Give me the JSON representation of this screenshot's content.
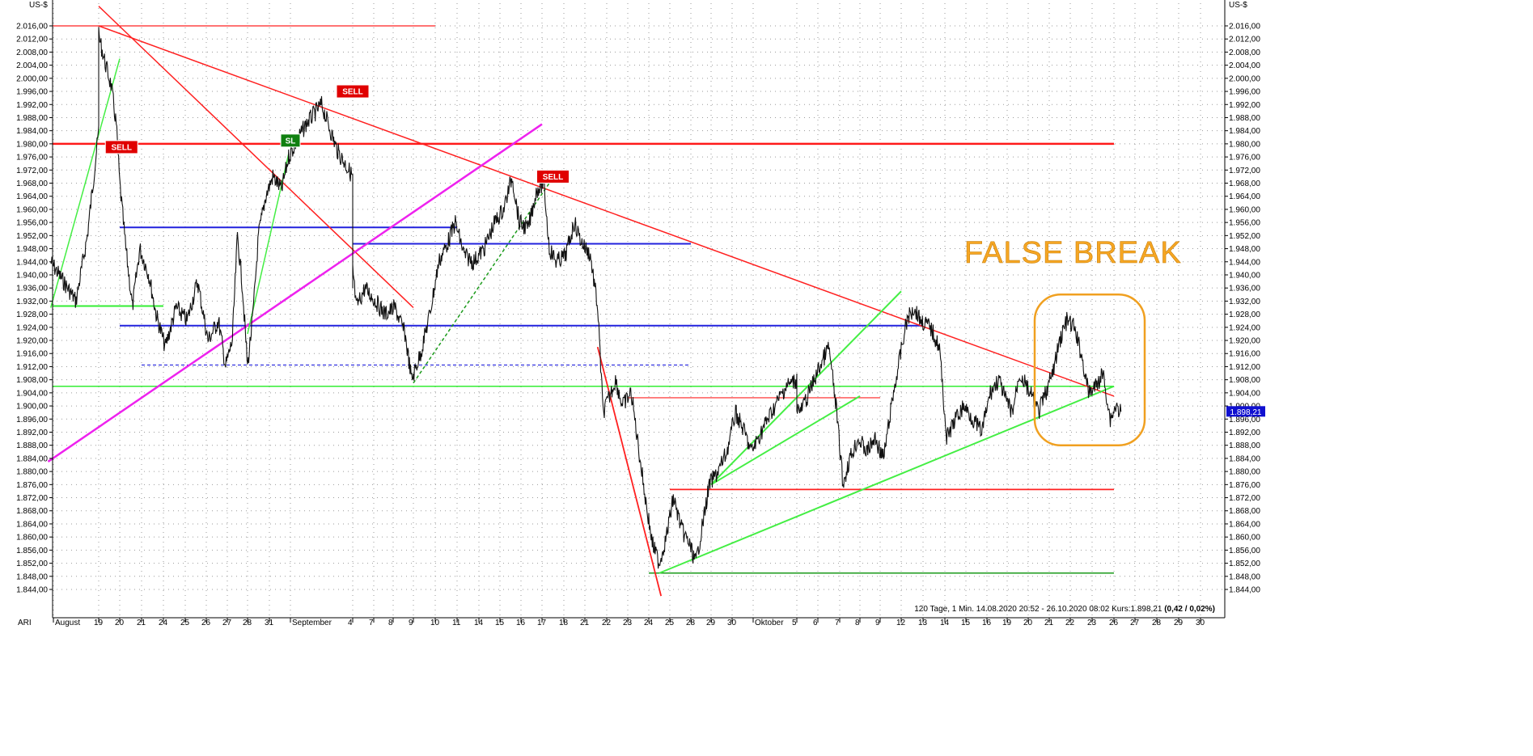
{
  "chart_data": {
    "type": "line",
    "unit_left": "US-$",
    "unit_right": "US-$",
    "symbol": "ARI",
    "info_line_prefix": "120 Tage, 1 Min. 14.08.2020 20:52 - 26.10.2020 08:02  Kurs:1.898,21 ",
    "info_line_change": "(0,42 / 0,02%)",
    "last_price_label": "1.898,21",
    "last_price": 1898.21,
    "ylim": [
      1840,
      2020
    ],
    "y_ticks": [
      1844,
      1848,
      1852,
      1856,
      1860,
      1864,
      1868,
      1872,
      1876,
      1880,
      1884,
      1888,
      1892,
      1896,
      1900,
      1904,
      1908,
      1912,
      1916,
      1920,
      1924,
      1928,
      1932,
      1936,
      1940,
      1944,
      1948,
      1952,
      1956,
      1960,
      1964,
      1968,
      1972,
      1976,
      1980,
      1984,
      1988,
      1992,
      1996,
      2000,
      2004,
      2008,
      2012,
      2016
    ],
    "y_tick_labels": [
      "1.844,00",
      "1.848,00",
      "1.852,00",
      "1.856,00",
      "1.860,00",
      "1.864,00",
      "1.868,00",
      "1.872,00",
      "1.876,00",
      "1.880,00",
      "1.884,00",
      "1.888,00",
      "1.892,00",
      "1.896,00",
      "1.900,00",
      "1.904,00",
      "1.908,00",
      "1.912,00",
      "1.916,00",
      "1.920,00",
      "1.924,00",
      "1.928,00",
      "1.932,00",
      "1.936,00",
      "1.940,00",
      "1.944,00",
      "1.948,00",
      "1.952,00",
      "1.956,00",
      "1.960,00",
      "1.964,00",
      "1.968,00",
      "1.972,00",
      "1.976,00",
      "1.980,00",
      "1.984,00",
      "1.988,00",
      "1.992,00",
      "1.996,00",
      "2.000,00",
      "2.004,00",
      "2.008,00",
      "2.012,00",
      "2.016,00"
    ],
    "x_ticks": [
      {
        "label": "August",
        "date": "2020-08-17",
        "px": 66
      },
      {
        "label": "19",
        "date": "2020-08-19",
        "px": 122
      },
      {
        "label": "20",
        "date": "2020-08-20",
        "px": 148
      },
      {
        "label": "21",
        "date": "2020-08-21",
        "px": 175
      },
      {
        "label": "24",
        "date": "2020-08-24",
        "px": 202
      },
      {
        "label": "25",
        "date": "2020-08-25",
        "px": 229
      },
      {
        "label": "26",
        "date": "2020-08-26",
        "px": 255
      },
      {
        "label": "27",
        "date": "2020-08-27",
        "px": 281
      },
      {
        "label": "28",
        "date": "2020-08-28",
        "px": 306
      },
      {
        "label": "31",
        "date": "2020-08-31",
        "px": 333
      },
      {
        "label": "September",
        "date": "2020-09-01",
        "px": 359
      },
      {
        "label": "4",
        "date": "2020-09-04",
        "px": 436
      },
      {
        "label": "7",
        "date": "2020-09-07",
        "px": 462
      },
      {
        "label": "8",
        "date": "2020-09-08",
        "px": 486
      },
      {
        "label": "9",
        "date": "2020-09-09",
        "px": 511
      },
      {
        "label": "10",
        "date": "2020-09-10",
        "px": 538
      },
      {
        "label": "11",
        "date": "2020-09-11",
        "px": 565
      },
      {
        "label": "14",
        "date": "2020-09-14",
        "px": 592
      },
      {
        "label": "15",
        "date": "2020-09-15",
        "px": 618
      },
      {
        "label": "16",
        "date": "2020-09-16",
        "px": 644
      },
      {
        "label": "17",
        "date": "2020-09-17",
        "px": 670
      },
      {
        "label": "18",
        "date": "2020-09-18",
        "px": 697
      },
      {
        "label": "21",
        "date": "2020-09-21",
        "px": 723
      },
      {
        "label": "22",
        "date": "2020-09-22",
        "px": 750
      },
      {
        "label": "23",
        "date": "2020-09-23",
        "px": 776
      },
      {
        "label": "24",
        "date": "2020-09-24",
        "px": 802
      },
      {
        "label": "25",
        "date": "2020-09-25",
        "px": 828
      },
      {
        "label": "28",
        "date": "2020-09-28",
        "px": 854
      },
      {
        "label": "29",
        "date": "2020-09-29",
        "px": 879
      },
      {
        "label": "30",
        "date": "2020-09-30",
        "px": 905
      },
      {
        "label": "Oktober",
        "date": "2020-10-01",
        "px": 931
      },
      {
        "label": "5",
        "date": "2020-10-05",
        "px": 985
      },
      {
        "label": "6",
        "date": "2020-10-06",
        "px": 1011
      },
      {
        "label": "7",
        "date": "2020-10-07",
        "px": 1038
      },
      {
        "label": "8",
        "date": "2020-10-08",
        "px": 1063
      },
      {
        "label": "9",
        "date": "2020-10-09",
        "px": 1088
      },
      {
        "label": "12",
        "date": "2020-10-12",
        "px": 1114
      },
      {
        "label": "13",
        "date": "2020-10-13",
        "px": 1141
      },
      {
        "label": "14",
        "date": "2020-10-14",
        "px": 1168
      },
      {
        "label": "15",
        "date": "2020-10-15",
        "px": 1194
      },
      {
        "label": "16",
        "date": "2020-10-16",
        "px": 1220
      },
      {
        "label": "19",
        "date": "2020-10-19",
        "px": 1245
      },
      {
        "label": "20",
        "date": "2020-10-20",
        "px": 1271
      },
      {
        "label": "21",
        "date": "2020-10-21",
        "px": 1297
      },
      {
        "label": "22",
        "date": "2020-10-22",
        "px": 1323
      },
      {
        "label": "23",
        "date": "2020-10-23",
        "px": 1350
      },
      {
        "label": "26",
        "date": "2020-10-26",
        "px": 1377
      },
      {
        "label": "27",
        "date": "2020-10-27",
        "px": 1403
      },
      {
        "label": "28",
        "date": "2020-10-28",
        "px": 1430
      },
      {
        "label": "29",
        "date": "2020-10-29",
        "px": 1457
      },
      {
        "label": "30",
        "date": "2020-10-30",
        "px": 1484
      }
    ],
    "price_series": [
      [
        "2020-08-14T21:00",
        1944
      ],
      [
        "2020-08-17T12:00",
        1932
      ],
      [
        "2020-08-17T18:00",
        1952
      ],
      [
        "2020-08-18T04:00",
        1984
      ],
      [
        "2020-08-18T14:00",
        1995
      ],
      [
        "2020-08-18T20:00",
        2006
      ],
      [
        "2020-08-19T00:00",
        2013
      ],
      [
        "2020-08-19T08:00",
        2004
      ],
      [
        "2020-08-19T14:00",
        1998
      ],
      [
        "2020-08-19T20:00",
        1986
      ],
      [
        "2020-08-20T00:00",
        1968
      ],
      [
        "2020-08-20T06:00",
        1950
      ],
      [
        "2020-08-20T14:00",
        1930
      ],
      [
        "2020-08-20T22:00",
        1948
      ],
      [
        "2020-08-21T08:00",
        1940
      ],
      [
        "2020-08-21T16:00",
        1928
      ],
      [
        "2020-08-24T02:00",
        1918
      ],
      [
        "2020-08-24T14:00",
        1930
      ],
      [
        "2020-08-25T02:00",
        1926
      ],
      [
        "2020-08-25T14:00",
        1938
      ],
      [
        "2020-08-26T02:00",
        1920
      ],
      [
        "2020-08-26T14:00",
        1926
      ],
      [
        "2020-08-26T22:00",
        1912
      ],
      [
        "2020-08-27T06:00",
        1920
      ],
      [
        "2020-08-27T12:00",
        1952
      ],
      [
        "2020-08-27T18:00",
        1936
      ],
      [
        "2020-08-28T00:00",
        1912
      ],
      [
        "2020-08-28T06:00",
        1928
      ],
      [
        "2020-08-28T12:00",
        1952
      ],
      [
        "2020-08-28T20:00",
        1964
      ],
      [
        "2020-08-31T04:00",
        1970
      ],
      [
        "2020-08-31T14:00",
        1966
      ],
      [
        "2020-08-31T22:00",
        1976
      ],
      [
        "2020-09-01T06:00",
        1986
      ],
      [
        "2020-09-01T12:00",
        1992
      ],
      [
        "2020-09-01T18:00",
        1978
      ],
      [
        "2020-09-02T02:00",
        1970
      ],
      [
        "2020-09-02T12:00",
        1960
      ],
      [
        "2020-09-02T22:00",
        1948
      ],
      [
        "2020-09-03T08:00",
        1934
      ],
      [
        "2020-09-03T18:00",
        1942
      ],
      [
        "2020-09-04T04:00",
        1930
      ],
      [
        "2020-09-04T14:00",
        1936
      ],
      [
        "2020-09-07T02:00",
        1932
      ],
      [
        "2020-09-07T14:00",
        1928
      ],
      [
        "2020-09-08T02:00",
        1930
      ],
      [
        "2020-09-08T14:00",
        1922
      ],
      [
        "2020-09-08T22:00",
        1908
      ],
      [
        "2020-09-09T08:00",
        1916
      ],
      [
        "2020-09-09T18:00",
        1928
      ],
      [
        "2020-09-10T04:00",
        1944
      ],
      [
        "2020-09-10T14:00",
        1950
      ],
      [
        "2020-09-10T22:00",
        1956
      ],
      [
        "2020-09-11T08:00",
        1946
      ],
      [
        "2020-09-11T18:00",
        1944
      ],
      [
        "2020-09-14T06:00",
        1948
      ],
      [
        "2020-09-14T18:00",
        1956
      ],
      [
        "2020-09-15T04:00",
        1960
      ],
      [
        "2020-09-15T14:00",
        1970
      ],
      [
        "2020-09-15T22:00",
        1956
      ],
      [
        "2020-09-16T08:00",
        1954
      ],
      [
        "2020-09-16T18:00",
        1966
      ],
      [
        "2020-09-17T02:00",
        1968
      ],
      [
        "2020-09-17T08:00",
        1948
      ],
      [
        "2020-09-17T16:00",
        1944
      ],
      [
        "2020-09-18T02:00",
        1946
      ],
      [
        "2020-09-18T12:00",
        1956
      ],
      [
        "2020-09-18T20:00",
        1950
      ],
      [
        "2020-09-21T06:00",
        1946
      ],
      [
        "2020-09-21T14:00",
        1930
      ],
      [
        "2020-09-21T20:00",
        1898
      ],
      [
        "2020-09-22T02:00",
        1902
      ],
      [
        "2020-09-22T10:00",
        1908
      ],
      [
        "2020-09-22T18:00",
        1900
      ],
      [
        "2020-09-23T04:00",
        1904
      ],
      [
        "2020-09-23T12:00",
        1888
      ],
      [
        "2020-09-23T20:00",
        1872
      ],
      [
        "2020-09-24T04:00",
        1858
      ],
      [
        "2020-09-24T12:00",
        1852
      ],
      [
        "2020-09-24T20:00",
        1860
      ],
      [
        "2020-09-25T04:00",
        1872
      ],
      [
        "2020-09-25T14:00",
        1862
      ],
      [
        "2020-09-25T22:00",
        1858
      ],
      [
        "2020-09-28T06:00",
        1852
      ],
      [
        "2020-09-28T14:00",
        1864
      ],
      [
        "2020-09-28T22:00",
        1876
      ],
      [
        "2020-09-29T08:00",
        1880
      ],
      [
        "2020-09-29T18:00",
        1886
      ],
      [
        "2020-09-30T04:00",
        1898
      ],
      [
        "2020-09-30T14:00",
        1892
      ],
      [
        "2020-09-30T22:00",
        1886
      ],
      [
        "2020-10-01T08:00",
        1896
      ],
      [
        "2020-10-01T18:00",
        1906
      ],
      [
        "2020-10-02T04:00",
        1908
      ],
      [
        "2020-10-02T14:00",
        1900
      ],
      [
        "2020-10-05T04:00",
        1898
      ],
      [
        "2020-10-05T14:00",
        1904
      ],
      [
        "2020-10-06T02:00",
        1912
      ],
      [
        "2020-10-06T12:00",
        1918
      ],
      [
        "2020-10-06T20:00",
        1900
      ],
      [
        "2020-10-07T04:00",
        1876
      ],
      [
        "2020-10-07T12:00",
        1884
      ],
      [
        "2020-10-07T22:00",
        1890
      ],
      [
        "2020-10-08T08:00",
        1886
      ],
      [
        "2020-10-08T18:00",
        1890
      ],
      [
        "2020-10-09T04:00",
        1884
      ],
      [
        "2020-10-09T14:00",
        1902
      ],
      [
        "2020-10-09T22:00",
        1914
      ],
      [
        "2020-10-12T06:00",
        1926
      ],
      [
        "2020-10-12T14:00",
        1930
      ],
      [
        "2020-10-12T22:00",
        1926
      ],
      [
        "2020-10-13T08:00",
        1924
      ],
      [
        "2020-10-13T18:00",
        1918
      ],
      [
        "2020-10-14T02:00",
        1890
      ],
      [
        "2020-10-14T12:00",
        1896
      ],
      [
        "2020-10-14T22:00",
        1900
      ],
      [
        "2020-10-15T08:00",
        1896
      ],
      [
        "2020-10-15T18:00",
        1892
      ],
      [
        "2020-10-16T04:00",
        1904
      ],
      [
        "2020-10-16T14:00",
        1908
      ],
      [
        "2020-10-16T22:00",
        1902
      ],
      [
        "2020-10-19T06:00",
        1898
      ],
      [
        "2020-10-19T14:00",
        1910
      ],
      [
        "2020-10-20T02:00",
        1904
      ],
      [
        "2020-10-20T12:00",
        1898
      ],
      [
        "2020-10-20T20:00",
        1904
      ],
      [
        "2020-10-21T04:00",
        1910
      ],
      [
        "2020-10-21T12:00",
        1920
      ],
      [
        "2020-10-21T20:00",
        1926
      ],
      [
        "2020-10-22T04:00",
        1924
      ],
      [
        "2020-10-22T12:00",
        1916
      ],
      [
        "2020-10-22T20:00",
        1904
      ],
      [
        "2020-10-23T04:00",
        1906
      ],
      [
        "2020-10-23T12:00",
        1910
      ],
      [
        "2020-10-23T20:00",
        1896
      ],
      [
        "2020-10-26T02:00",
        1900
      ],
      [
        "2020-10-26T08:00",
        1898.21
      ]
    ],
    "horizontal_levels": [
      {
        "value": 2016,
        "color": "#ff2020",
        "from": "2020-08-14",
        "to": "2020-09-10",
        "width": 1.2
      },
      {
        "value": 1980,
        "color": "#ff1a1a",
        "from": "2020-08-14",
        "to": "2020-10-26",
        "width": 2.5
      },
      {
        "value": 1954.5,
        "color": "#2222dd",
        "from": "2020-08-20",
        "to": "2020-09-11",
        "width": 2
      },
      {
        "value": 1949.5,
        "color": "#2222dd",
        "from": "2020-09-02",
        "to": "2020-09-28",
        "width": 2
      },
      {
        "value": 1930.5,
        "color": "#33ee33",
        "from": "2020-08-14",
        "to": "2020-08-24",
        "width": 2
      },
      {
        "value": 1924.5,
        "color": "#2222dd",
        "from": "2020-08-20",
        "to": "2020-10-13",
        "width": 2
      },
      {
        "value": 1912.5,
        "color": "#2222dd",
        "from": "2020-08-21",
        "to": "2020-09-28",
        "width": 1.2,
        "dashed": true
      },
      {
        "value": 1906,
        "color": "#33ee33",
        "from": "2020-08-14",
        "to": "2020-10-26",
        "width": 1.5
      },
      {
        "value": 1902.5,
        "color": "#ff2020",
        "from": "2020-09-23",
        "to": "2020-10-09",
        "width": 1.2
      },
      {
        "value": 1874.5,
        "color": "#ff2020",
        "from": "2020-09-25",
        "to": "2020-10-26",
        "width": 1.8
      },
      {
        "value": 1849,
        "color": "#1a9a1a",
        "from": "2020-09-24",
        "to": "2020-10-26",
        "width": 1.5
      }
    ],
    "trend_lines": [
      {
        "from": [
          "2020-08-18T00:00",
          2022
        ],
        "to": [
          "2020-09-09",
          1930
        ],
        "color": "#ff2020"
      },
      {
        "from": [
          "2020-08-19T00:00",
          2016
        ],
        "to": [
          "2020-10-26",
          1903
        ],
        "color": "#ff2020"
      },
      {
        "from": [
          "2020-08-14T18:00",
          1883
        ],
        "to": [
          "2020-09-17",
          1986
        ],
        "color": "#ee22ee",
        "width": 2.5
      },
      {
        "from": [
          "2020-08-14T21:00",
          1930
        ],
        "to": [
          "2020-08-20",
          2006
        ],
        "color": "#44ee44"
      },
      {
        "from": [
          "2020-08-28",
          1922
        ],
        "to": [
          "2020-08-31T22:00",
          1977
        ],
        "color": "#44ee44"
      },
      {
        "from": [
          "2020-09-09",
          1907
        ],
        "to": [
          "2020-09-17T08:00",
          1968
        ],
        "color": "#1a9a1a",
        "dashed": true
      },
      {
        "from": [
          "2020-09-24T12:00",
          1849
        ],
        "to": [
          "2020-10-26",
          1906
        ],
        "color": "#44ee44",
        "width": 2
      },
      {
        "from": [
          "2020-09-29",
          1876
        ],
        "to": [
          "2020-10-12",
          1935
        ],
        "color": "#44ee44",
        "width": 2
      },
      {
        "from": [
          "2020-09-29",
          1876
        ],
        "to": [
          "2020-10-08",
          1903
        ],
        "color": "#44ee44",
        "width": 2
      },
      {
        "from": [
          "2020-09-21T14:00",
          1918
        ],
        "to": [
          "2020-09-24T14:00",
          1842
        ],
        "color": "#ff2020",
        "width": 1.8
      }
    ],
    "signals": [
      {
        "label": "SELL",
        "date": "2020-08-20T02:00",
        "price": 1979,
        "color": "#e00000"
      },
      {
        "label": "SL",
        "date": "2020-09-01T00:00",
        "price": 1981,
        "color": "#108010"
      },
      {
        "label": "SELL",
        "date": "2020-09-02T20:00",
        "price": 1996,
        "color": "#e00000"
      },
      {
        "label": "SELL",
        "date": "2020-09-17T12:00",
        "price": 1970,
        "color": "#e00000"
      }
    ],
    "annotation": "FALSE BREAK",
    "highlight_box": {
      "from": "2020-10-21",
      "to": "2020-10-26",
      "ymin": 1888,
      "ymax": 1934,
      "color": "#f0a020"
    }
  }
}
